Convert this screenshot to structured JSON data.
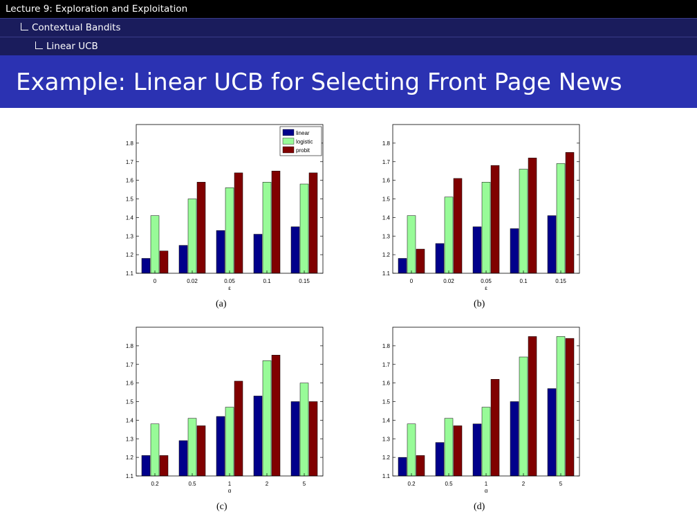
{
  "nav": {
    "lecture": "Lecture 9: Exploration and Exploitation",
    "section": "Contextual Bandits",
    "subsection": "Linear UCB"
  },
  "slide_title": "Example: Linear UCB for Selecting Front Page News",
  "colors": {
    "linear": "#00008b",
    "logistic": "#98fb98",
    "probit": "#800000"
  },
  "chart_data": [
    {
      "type": "bar",
      "caption": "(a)",
      "xlabel": "ε",
      "categories": [
        "0",
        "0.02",
        "0.05",
        "0.1",
        "0.15"
      ],
      "ylim": [
        1.1,
        1.9
      ],
      "yticks": [
        1.1,
        1.2,
        1.3,
        1.4,
        1.5,
        1.6,
        1.7,
        1.8
      ],
      "legend": "top-right",
      "series": [
        {
          "name": "linear",
          "values": [
            1.18,
            1.25,
            1.33,
            1.31,
            1.35
          ]
        },
        {
          "name": "logistic",
          "values": [
            1.41,
            1.5,
            1.56,
            1.59,
            1.58
          ]
        },
        {
          "name": "probit",
          "values": [
            1.22,
            1.59,
            1.64,
            1.65,
            1.64
          ]
        }
      ]
    },
    {
      "type": "bar",
      "caption": "(b)",
      "xlabel": "ε",
      "categories": [
        "0",
        "0.02",
        "0.05",
        "0.1",
        "0.15"
      ],
      "ylim": [
        1.1,
        1.9
      ],
      "yticks": [
        1.1,
        1.2,
        1.3,
        1.4,
        1.5,
        1.6,
        1.7,
        1.8
      ],
      "series": [
        {
          "name": "linear",
          "values": [
            1.18,
            1.26,
            1.35,
            1.34,
            1.41
          ]
        },
        {
          "name": "logistic",
          "values": [
            1.41,
            1.51,
            1.59,
            1.66,
            1.69
          ]
        },
        {
          "name": "probit",
          "values": [
            1.23,
            1.61,
            1.68,
            1.72,
            1.75
          ]
        }
      ]
    },
    {
      "type": "bar",
      "caption": "(c)",
      "xlabel": "α",
      "categories": [
        "0.2",
        "0.5",
        "1",
        "2",
        "5"
      ],
      "ylim": [
        1.1,
        1.9
      ],
      "yticks": [
        1.1,
        1.2,
        1.3,
        1.4,
        1.5,
        1.6,
        1.7,
        1.8
      ],
      "series": [
        {
          "name": "linear",
          "values": [
            1.21,
            1.29,
            1.42,
            1.53,
            1.5
          ]
        },
        {
          "name": "logistic",
          "values": [
            1.38,
            1.41,
            1.47,
            1.72,
            1.6
          ]
        },
        {
          "name": "probit",
          "values": [
            1.21,
            1.37,
            1.61,
            1.75,
            1.5
          ]
        }
      ]
    },
    {
      "type": "bar",
      "caption": "(d)",
      "xlabel": "α",
      "categories": [
        "0.2",
        "0.5",
        "1",
        "2",
        "5"
      ],
      "ylim": [
        1.1,
        1.9
      ],
      "yticks": [
        1.1,
        1.2,
        1.3,
        1.4,
        1.5,
        1.6,
        1.7,
        1.8
      ],
      "series": [
        {
          "name": "linear",
          "values": [
            1.2,
            1.28,
            1.38,
            1.5,
            1.57
          ]
        },
        {
          "name": "logistic",
          "values": [
            1.38,
            1.41,
            1.47,
            1.74,
            1.85
          ]
        },
        {
          "name": "probit",
          "values": [
            1.21,
            1.37,
            1.62,
            1.85,
            1.84
          ]
        }
      ]
    }
  ]
}
